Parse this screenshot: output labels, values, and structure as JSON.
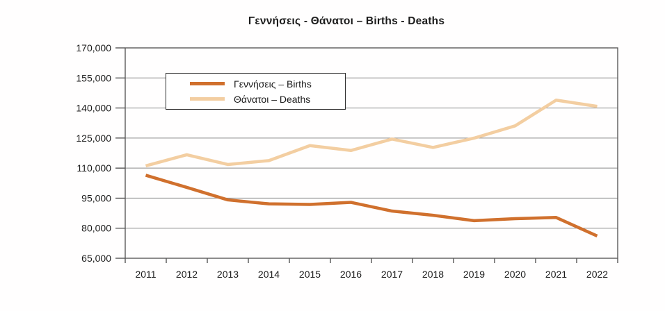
{
  "title": "Γεννήσεις - Θάνατοι – Births - Deaths",
  "chart_data": {
    "type": "line",
    "title": "Γεννήσεις - Θάνατοι – Births - Deaths",
    "categories": [
      "2011",
      "2012",
      "2013",
      "2014",
      "2015",
      "2016",
      "2017",
      "2018",
      "2019",
      "2020",
      "2021",
      "2022"
    ],
    "series": [
      {
        "name": "Γεννήσεις – Births",
        "color": "#d0702d",
        "values": [
          106428,
          100371,
          94134,
          92148,
          91847,
          92898,
          88553,
          86440,
          83763,
          84767,
          85346,
          76095
        ]
      },
      {
        "name": "Θάνατοι – Deaths",
        "color": "#f3cea1",
        "values": [
          111099,
          116670,
          111794,
          113740,
          121212,
          118792,
          124501,
          120297,
          124954,
          131084,
          143923,
          140801
        ]
      }
    ],
    "xlabel": "",
    "ylabel": "",
    "ylim": [
      65000,
      170000
    ],
    "ytick_step": 15000,
    "ytick_labels": [
      "65,000",
      "80,000",
      "95,000",
      "110,000",
      "125,000",
      "140,000",
      "155,000",
      "170,000"
    ],
    "grid": true,
    "legend_position": "top-left-inside"
  }
}
